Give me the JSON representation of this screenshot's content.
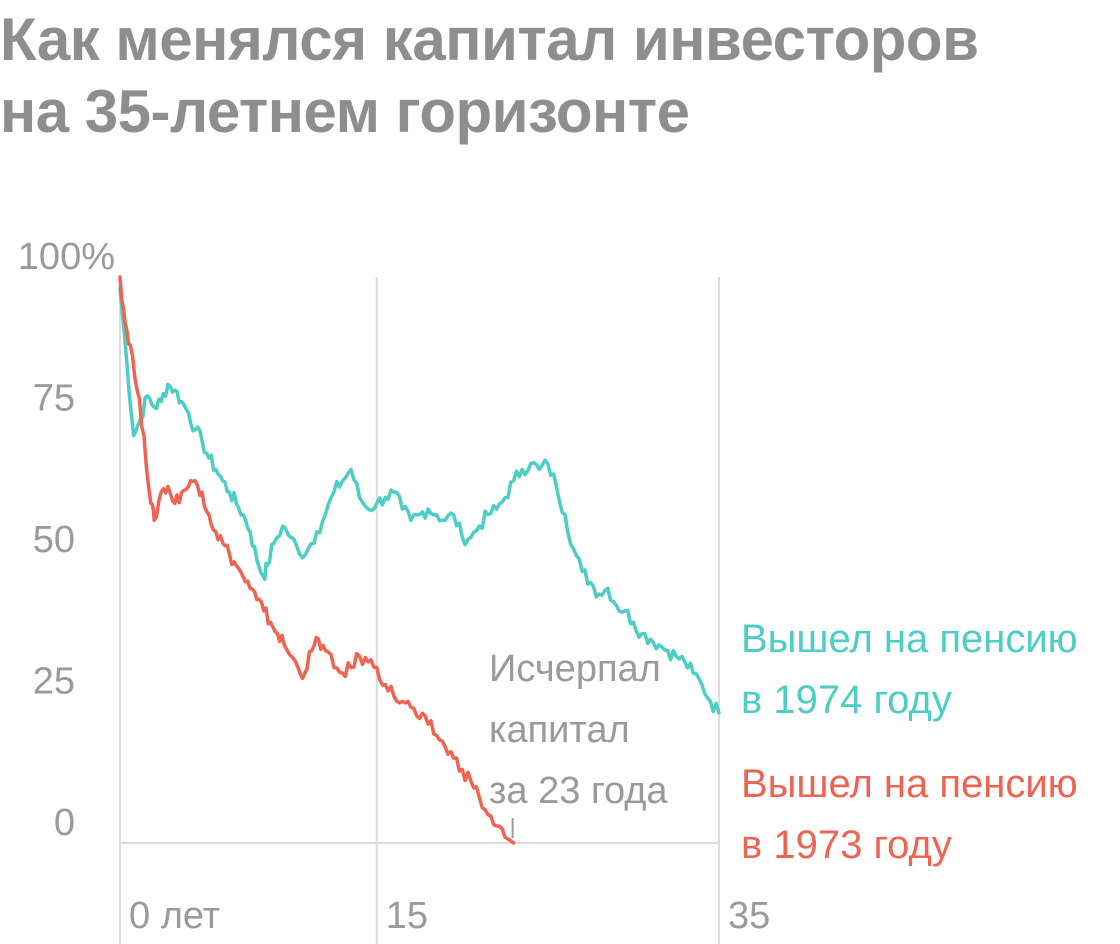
{
  "title_line1": "Как менялся капитал инвесторов",
  "title_line2": "на 35-летнем горизонте",
  "colors": {
    "s1974": "#4ecdc4",
    "s1973": "#ee6452",
    "text": "#9a9a9a",
    "grid": "#dcdcdc"
  },
  "chart_data": {
    "type": "line",
    "title": "Как менялся капитал инвесторов на 35-летнем горизонте",
    "xlabel": "",
    "ylabel": "",
    "xlim": [
      0,
      35
    ],
    "ylim": [
      0,
      100
    ],
    "x_ticks": [
      {
        "value": 0,
        "label": "0 лет"
      },
      {
        "value": 15,
        "label": "15"
      },
      {
        "value": 35,
        "label": "35"
      }
    ],
    "y_ticks": [
      {
        "value": 100,
        "label": "100%"
      },
      {
        "value": 75,
        "label": "75"
      },
      {
        "value": 50,
        "label": "50"
      },
      {
        "value": 25,
        "label": "25"
      },
      {
        "value": 0,
        "label": "0"
      }
    ],
    "grid": "vertical lines at x = 0, 15, 35",
    "legend_placement": "right, labels at line ends",
    "series": [
      {
        "name": "Вышел на пенсию в 1974 году",
        "label_lines": [
          "Вышел на пенсию",
          "в 1974 году"
        ],
        "color": "#4ecdc4",
        "points": [
          [
            0,
            98
          ],
          [
            0.4,
            85
          ],
          [
            0.8,
            72
          ],
          [
            1.2,
            75
          ],
          [
            1.6,
            79
          ],
          [
            2.0,
            77
          ],
          [
            2.4,
            78
          ],
          [
            2.8,
            81
          ],
          [
            3.2,
            80
          ],
          [
            3.6,
            78
          ],
          [
            4.0,
            76
          ],
          [
            4.4,
            73
          ],
          [
            4.8,
            71
          ],
          [
            5.2,
            68
          ],
          [
            5.6,
            66
          ],
          [
            6.0,
            64
          ],
          [
            6.4,
            62
          ],
          [
            6.8,
            60
          ],
          [
            7.2,
            58
          ],
          [
            7.6,
            55
          ],
          [
            8.0,
            50
          ],
          [
            8.4,
            47
          ],
          [
            8.6,
            49
          ],
          [
            9.0,
            53
          ],
          [
            9.5,
            56
          ],
          [
            10.0,
            54
          ],
          [
            10.5,
            51
          ],
          [
            11.0,
            52
          ],
          [
            11.5,
            55
          ],
          [
            12.0,
            58
          ],
          [
            12.5,
            62
          ],
          [
            13.0,
            64
          ],
          [
            13.5,
            66
          ],
          [
            14.0,
            61
          ],
          [
            14.5,
            59
          ],
          [
            15.0,
            60
          ],
          [
            15.5,
            61
          ],
          [
            16.0,
            62
          ],
          [
            16.5,
            59
          ],
          [
            17.0,
            57
          ],
          [
            17.5,
            58
          ],
          [
            18.0,
            59
          ],
          [
            18.5,
            58
          ],
          [
            19.0,
            57
          ],
          [
            19.5,
            58
          ],
          [
            20.0,
            54
          ],
          [
            20.5,
            54
          ],
          [
            21.0,
            56
          ],
          [
            21.5,
            58
          ],
          [
            22.0,
            59
          ],
          [
            22.5,
            61
          ],
          [
            23.0,
            64
          ],
          [
            23.5,
            66
          ],
          [
            24.0,
            67
          ],
          [
            24.5,
            66
          ],
          [
            25.0,
            67
          ],
          [
            25.5,
            63
          ],
          [
            26.0,
            58
          ],
          [
            26.5,
            52
          ],
          [
            27.0,
            48
          ],
          [
            27.5,
            46
          ],
          [
            28.0,
            44
          ],
          [
            28.5,
            45
          ],
          [
            29.0,
            42
          ],
          [
            29.5,
            41
          ],
          [
            30.0,
            39
          ],
          [
            30.5,
            37
          ],
          [
            31.0,
            36
          ],
          [
            31.5,
            35
          ],
          [
            32.0,
            34
          ],
          [
            32.5,
            33
          ],
          [
            33.0,
            32
          ],
          [
            33.5,
            30
          ],
          [
            34.0,
            28
          ],
          [
            34.5,
            25
          ],
          [
            35.0,
            23
          ]
        ]
      },
      {
        "name": "Вышел на пенсию в 1973 году",
        "label_lines": [
          "Вышел на пенсию",
          "в 1973 году"
        ],
        "color": "#ee6452",
        "points": [
          [
            0,
            100
          ],
          [
            0.3,
            92
          ],
          [
            0.6,
            88
          ],
          [
            1.0,
            80
          ],
          [
            1.4,
            72
          ],
          [
            1.8,
            60
          ],
          [
            2.0,
            57
          ],
          [
            2.4,
            62
          ],
          [
            2.8,
            63
          ],
          [
            3.2,
            60
          ],
          [
            3.6,
            62
          ],
          [
            4.0,
            63
          ],
          [
            4.4,
            64
          ],
          [
            4.8,
            62
          ],
          [
            5.2,
            58
          ],
          [
            5.6,
            55
          ],
          [
            6.0,
            53
          ],
          [
            6.4,
            51
          ],
          [
            6.8,
            49
          ],
          [
            7.2,
            47
          ],
          [
            7.6,
            45
          ],
          [
            8.0,
            43
          ],
          [
            8.4,
            41
          ],
          [
            8.8,
            39
          ],
          [
            9.2,
            37
          ],
          [
            9.6,
            35
          ],
          [
            10.0,
            33
          ],
          [
            10.4,
            31
          ],
          [
            10.8,
            30
          ],
          [
            11.2,
            34
          ],
          [
            11.6,
            36
          ],
          [
            12.0,
            34
          ],
          [
            12.5,
            31
          ],
          [
            13.0,
            30
          ],
          [
            13.5,
            31
          ],
          [
            14.0,
            33
          ],
          [
            14.5,
            32
          ],
          [
            15.0,
            31
          ],
          [
            15.5,
            28
          ],
          [
            16.0,
            26
          ],
          [
            16.5,
            25
          ],
          [
            17.0,
            24
          ],
          [
            17.5,
            22
          ],
          [
            18.0,
            21
          ],
          [
            18.5,
            19
          ],
          [
            19.0,
            17
          ],
          [
            19.5,
            15
          ],
          [
            20.0,
            13
          ],
          [
            20.5,
            11
          ],
          [
            21.0,
            8
          ],
          [
            21.5,
            5
          ],
          [
            22.0,
            3
          ],
          [
            22.5,
            1
          ],
          [
            23.0,
            0
          ]
        ]
      }
    ],
    "annotation": {
      "lines": [
        "Исчерпал",
        "капитал",
        "за 23 года"
      ],
      "x": 23,
      "y": 0
    }
  }
}
